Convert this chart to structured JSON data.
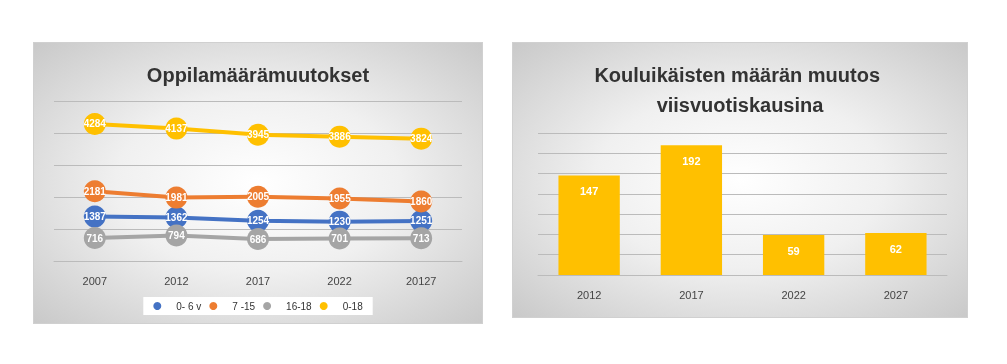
{
  "chart_data": [
    {
      "type": "line",
      "title": "Oppilamäärämuutokset",
      "categories": [
        "2007",
        "2012",
        "2017",
        "2022",
        "20127"
      ],
      "series": [
        {
          "name": "0- 6 v",
          "color": "#4472c4",
          "values": [
            1387,
            1362,
            1254,
            1230,
            1251
          ]
        },
        {
          "name": "7 -15",
          "color": "#ed7d31",
          "values": [
            2181,
            1981,
            2005,
            1955,
            1860
          ]
        },
        {
          "name": "16-18",
          "color": "#a5a5a5",
          "values": [
            716,
            794,
            686,
            701,
            713
          ]
        },
        {
          "name": "0-18",
          "color": "#ffc000",
          "values": [
            4284,
            4137,
            3945,
            3886,
            3824
          ]
        }
      ],
      "data_labels": true,
      "marker": "circle",
      "legend": "bottom",
      "grid": "y",
      "tick_labels": "x"
    },
    {
      "type": "bar",
      "title": "Kouluikäisten määrän muutos viisvuotiskausina",
      "categories": [
        "2012",
        "2017",
        "2022",
        "2027"
      ],
      "values": [
        147,
        192,
        59,
        62
      ],
      "color": "#ffc000",
      "data_labels": true,
      "grid": "y",
      "tick_labels": "x"
    }
  ]
}
